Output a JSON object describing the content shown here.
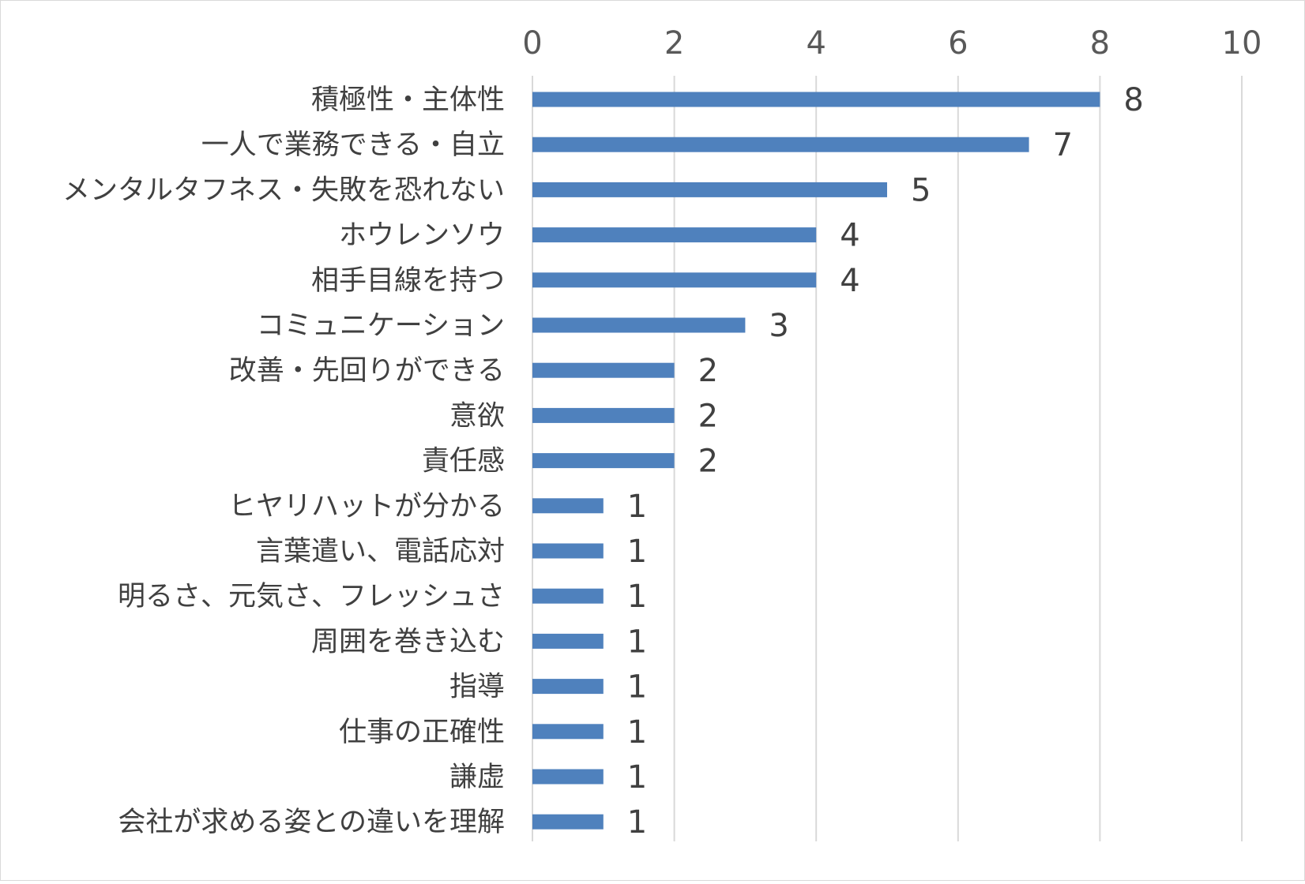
{
  "chart_data": {
    "type": "bar",
    "orientation": "horizontal",
    "categories": [
      "積極性・主体性",
      "一人で業務できる・自立",
      "メンタルタフネス・失敗を恐れない",
      "ホウレンソウ",
      "相手目線を持つ",
      "コミュニケーション",
      "改善・先回りができる",
      "意欲",
      "責任感",
      "ヒヤリハットが分かる",
      "言葉遣い、電話応対",
      "明るさ、元気さ、フレッシュさ",
      "周囲を巻き込む",
      "指導",
      "仕事の正確性",
      "謙虚",
      "会社が求める姿との違いを理解"
    ],
    "values": [
      8,
      7,
      5,
      4,
      4,
      3,
      2,
      2,
      2,
      1,
      1,
      1,
      1,
      1,
      1,
      1,
      1
    ],
    "xlim": [
      0,
      10
    ],
    "xticks": [
      "0",
      "2",
      "4",
      "6",
      "8",
      "10"
    ],
    "axis_position": "top",
    "grid": true,
    "data_labels": true,
    "legend": "none",
    "bar_color": "#4f81bd",
    "grid_color": "#d9d9d9"
  }
}
